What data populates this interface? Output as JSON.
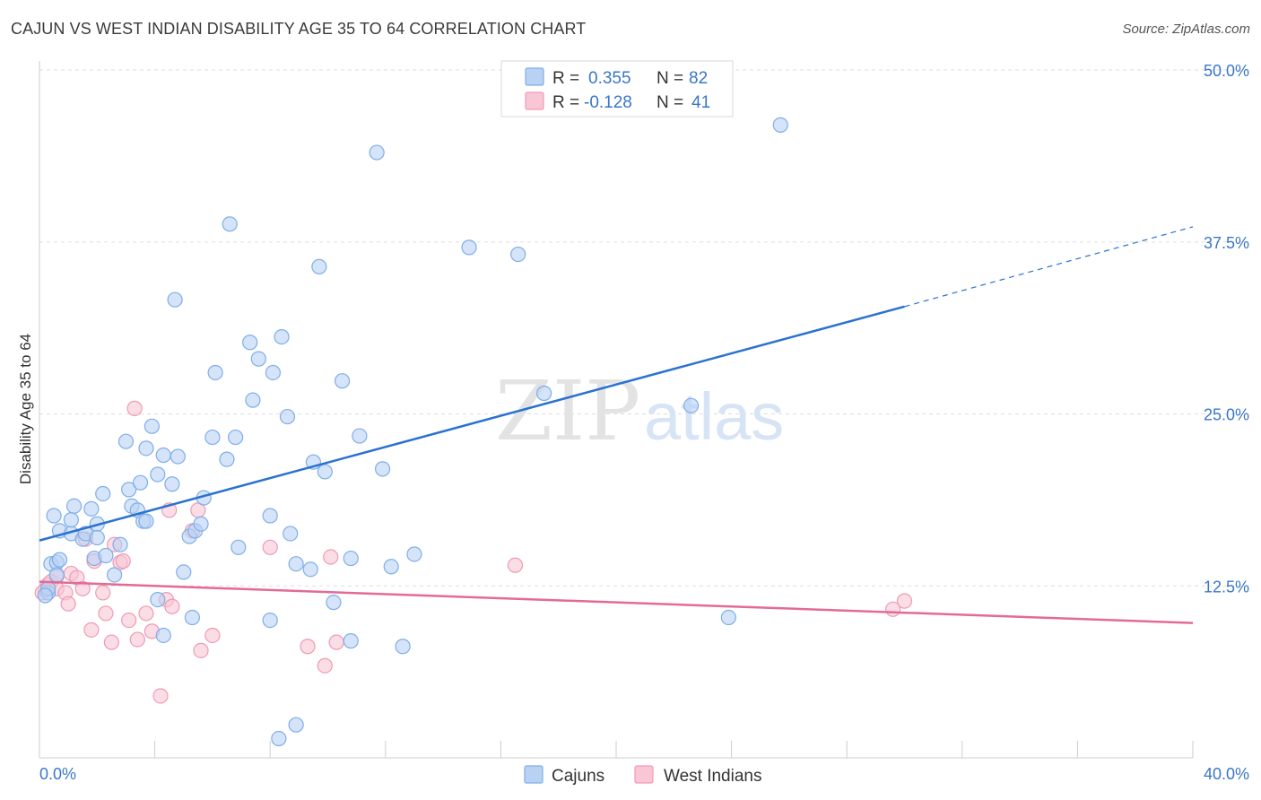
{
  "header": {
    "title": "CAJUN VS WEST INDIAN DISABILITY AGE 35 TO 64 CORRELATION CHART",
    "source": "Source: ZipAtlas.com"
  },
  "watermark": {
    "zip": "ZIP",
    "atlas": "atlas"
  },
  "legend_top": {
    "rows": [
      {
        "r_label": "R =",
        "r_value": "0.355",
        "n_label": "N =",
        "n_value": "82",
        "color": "#7eaee9"
      },
      {
        "r_label": "R =",
        "r_value": "-0.128",
        "n_label": "N =",
        "n_value": "41",
        "color": "#f29bb6"
      }
    ]
  },
  "colors": {
    "cajun_fill": "#b9d2f3",
    "cajun_stroke": "#7eaee9",
    "cajun_line": "#2a72d0",
    "west_fill": "#f8c6d5",
    "west_stroke": "#ef9ab5",
    "west_line": "#e46a96",
    "value_text": "#3a76c9",
    "grid": "#dddddd"
  },
  "chart_data": {
    "type": "scatter",
    "title": "CAJUN VS WEST INDIAN DISABILITY AGE 35 TO 64 CORRELATION CHART",
    "xlabel": "",
    "ylabel": "Disability Age 35 to 64",
    "xlim": [
      0,
      40
    ],
    "ylim": [
      0,
      50
    ],
    "x_tick_labels": [
      "0.0%",
      "40.0%"
    ],
    "y_ticks": [
      12.5,
      25,
      37.5,
      50
    ],
    "y_tick_labels": [
      "12.5%",
      "25.0%",
      "37.5%",
      "50.0%"
    ],
    "grid": true,
    "legend_position": "bottom-center",
    "series": [
      {
        "name": "Cajuns",
        "r": 0.355,
        "n": 82,
        "trend": {
          "x": [
            0,
            30
          ],
          "y": [
            15.8,
            32.8
          ],
          "dashed_to": [
            40,
            38.6
          ]
        },
        "points": [
          [
            0.3,
            12.0
          ],
          [
            0.3,
            12.3
          ],
          [
            0.4,
            14.1
          ],
          [
            0.5,
            17.6
          ],
          [
            0.6,
            14.2
          ],
          [
            0.6,
            13.3
          ],
          [
            0.7,
            16.5
          ],
          [
            0.7,
            14.4
          ],
          [
            1.1,
            16.3
          ],
          [
            1.1,
            17.3
          ],
          [
            1.2,
            18.3
          ],
          [
            1.5,
            15.9
          ],
          [
            1.6,
            16.3
          ],
          [
            1.8,
            18.1
          ],
          [
            1.9,
            14.5
          ],
          [
            2.0,
            17.0
          ],
          [
            2.0,
            16.0
          ],
          [
            2.2,
            19.2
          ],
          [
            2.3,
            14.7
          ],
          [
            2.6,
            13.3
          ],
          [
            2.8,
            15.5
          ],
          [
            3.0,
            23.0
          ],
          [
            3.1,
            19.5
          ],
          [
            3.2,
            18.3
          ],
          [
            3.4,
            18.0
          ],
          [
            3.5,
            20.0
          ],
          [
            3.6,
            17.2
          ],
          [
            3.7,
            17.2
          ],
          [
            3.7,
            22.5
          ],
          [
            3.9,
            24.1
          ],
          [
            4.1,
            20.6
          ],
          [
            4.1,
            11.5
          ],
          [
            4.3,
            22.0
          ],
          [
            4.3,
            8.9
          ],
          [
            4.6,
            19.9
          ],
          [
            4.7,
            33.3
          ],
          [
            4.8,
            21.9
          ],
          [
            5.0,
            13.5
          ],
          [
            5.2,
            16.1
          ],
          [
            5.3,
            10.2
          ],
          [
            5.4,
            16.5
          ],
          [
            5.6,
            17.0
          ],
          [
            5.7,
            18.9
          ],
          [
            6.0,
            23.3
          ],
          [
            6.1,
            28.0
          ],
          [
            6.5,
            21.7
          ],
          [
            6.6,
            38.8
          ],
          [
            6.8,
            23.3
          ],
          [
            6.9,
            15.3
          ],
          [
            7.3,
            30.2
          ],
          [
            7.4,
            26.0
          ],
          [
            7.6,
            29.0
          ],
          [
            8.0,
            10.0
          ],
          [
            8.0,
            17.6
          ],
          [
            8.1,
            28.0
          ],
          [
            8.3,
            1.4
          ],
          [
            8.4,
            30.6
          ],
          [
            8.6,
            24.8
          ],
          [
            8.7,
            16.3
          ],
          [
            8.9,
            2.4
          ],
          [
            8.9,
            14.1
          ],
          [
            9.4,
            13.7
          ],
          [
            9.5,
            21.5
          ],
          [
            9.7,
            35.7
          ],
          [
            9.9,
            20.8
          ],
          [
            10.2,
            11.3
          ],
          [
            10.5,
            27.4
          ],
          [
            10.8,
            8.5
          ],
          [
            10.8,
            14.5
          ],
          [
            11.1,
            23.4
          ],
          [
            11.7,
            44.0
          ],
          [
            11.9,
            21.0
          ],
          [
            12.2,
            13.9
          ],
          [
            12.6,
            8.1
          ],
          [
            13.0,
            14.8
          ],
          [
            14.9,
            37.1
          ],
          [
            16.6,
            36.6
          ],
          [
            17.5,
            26.5
          ],
          [
            22.6,
            25.6
          ],
          [
            23.9,
            10.2
          ],
          [
            25.7,
            46.0
          ],
          [
            0.2,
            11.8
          ]
        ]
      },
      {
        "name": "West Indians",
        "r": -0.128,
        "n": 41,
        "trend": {
          "x": [
            0,
            40
          ],
          "y": [
            12.8,
            9.8
          ]
        },
        "points": [
          [
            0.2,
            12.2
          ],
          [
            0.3,
            12.6
          ],
          [
            0.4,
            12.8
          ],
          [
            0.6,
            12.3
          ],
          [
            0.6,
            13.2
          ],
          [
            0.9,
            12.0
          ],
          [
            1.0,
            11.2
          ],
          [
            1.1,
            13.4
          ],
          [
            1.3,
            13.1
          ],
          [
            1.5,
            12.3
          ],
          [
            1.6,
            15.9
          ],
          [
            1.8,
            9.3
          ],
          [
            1.9,
            14.3
          ],
          [
            2.2,
            12.0
          ],
          [
            2.3,
            10.5
          ],
          [
            2.5,
            8.4
          ],
          [
            2.6,
            15.5
          ],
          [
            2.8,
            14.2
          ],
          [
            2.9,
            14.3
          ],
          [
            3.1,
            10.0
          ],
          [
            3.3,
            25.4
          ],
          [
            3.4,
            8.6
          ],
          [
            3.7,
            10.5
          ],
          [
            3.9,
            9.2
          ],
          [
            4.2,
            4.5
          ],
          [
            4.4,
            11.5
          ],
          [
            4.5,
            18.0
          ],
          [
            4.6,
            11.0
          ],
          [
            5.3,
            16.5
          ],
          [
            5.5,
            18.0
          ],
          [
            5.6,
            7.8
          ],
          [
            6.0,
            8.9
          ],
          [
            8.0,
            15.3
          ],
          [
            9.3,
            8.1
          ],
          [
            9.9,
            6.7
          ],
          [
            10.1,
            14.6
          ],
          [
            10.3,
            8.4
          ],
          [
            16.5,
            14.0
          ],
          [
            29.6,
            10.8
          ],
          [
            30.0,
            11.4
          ],
          [
            0.1,
            12.0
          ]
        ]
      }
    ]
  }
}
